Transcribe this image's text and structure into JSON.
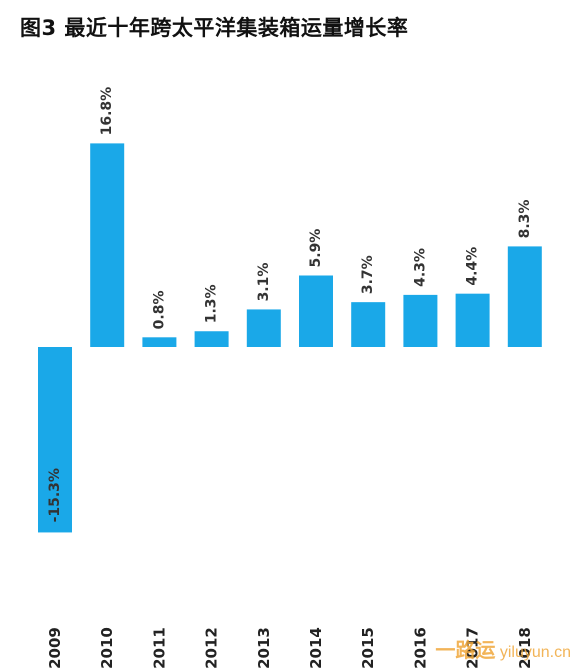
{
  "title": "图3 最近十年跨太平洋集装箱运量增长率",
  "watermark": {
    "name": "一路运",
    "domain": "yiluyun.cn"
  },
  "chart_data": {
    "type": "bar",
    "title": "图3 最近十年跨太平洋集装箱运量增长率",
    "categories": [
      "2009",
      "2010",
      "2011",
      "2012",
      "2013",
      "2014",
      "2015",
      "2016",
      "2017",
      "2018"
    ],
    "values": [
      -15.3,
      16.8,
      0.8,
      1.3,
      3.1,
      5.9,
      3.7,
      4.3,
      4.4,
      8.3
    ],
    "labels": [
      "-15.3%",
      "16.8%",
      "0.8%",
      "1.3%",
      "3.1%",
      "5.9%",
      "3.7%",
      "4.3%",
      "4.4%",
      "8.3%"
    ],
    "xlabel": "",
    "ylabel": "",
    "ylim": [
      -15.3,
      16.8
    ],
    "color": "#1aa8e8",
    "grid": false,
    "legend": "none"
  }
}
